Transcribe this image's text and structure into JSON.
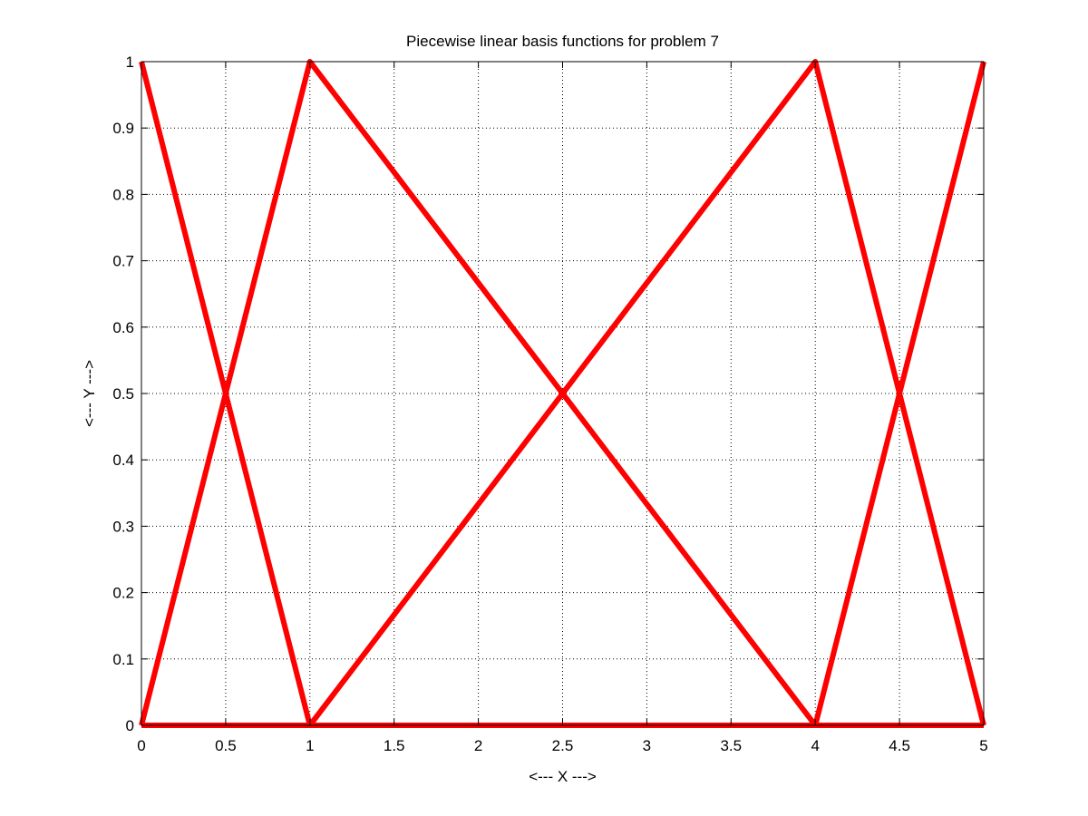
{
  "chart_data": {
    "type": "line",
    "title": "Piecewise linear basis functions for problem 7",
    "xlabel": "<--- X --->",
    "ylabel": "<--- Y --->",
    "xlim": [
      0,
      5
    ],
    "ylim": [
      0,
      1
    ],
    "xticks": [
      "0",
      "0.5",
      "1",
      "1.5",
      "2",
      "2.5",
      "3",
      "3.5",
      "4",
      "4.5",
      "5"
    ],
    "yticks": [
      "0",
      "0.1",
      "0.2",
      "0.3",
      "0.4",
      "0.5",
      "0.6",
      "0.7",
      "0.8",
      "0.9",
      "1"
    ],
    "grid": true,
    "line_color": "#ff0000",
    "series": [
      {
        "x": [
          0,
          1,
          5
        ],
        "y": [
          1,
          0,
          0
        ]
      },
      {
        "x": [
          0,
          1,
          4,
          5
        ],
        "y": [
          0,
          1,
          0,
          0
        ]
      },
      {
        "x": [
          0,
          1,
          4,
          5
        ],
        "y": [
          0,
          0,
          1,
          0
        ]
      },
      {
        "x": [
          0,
          4,
          5
        ],
        "y": [
          0,
          0,
          1
        ]
      }
    ]
  }
}
